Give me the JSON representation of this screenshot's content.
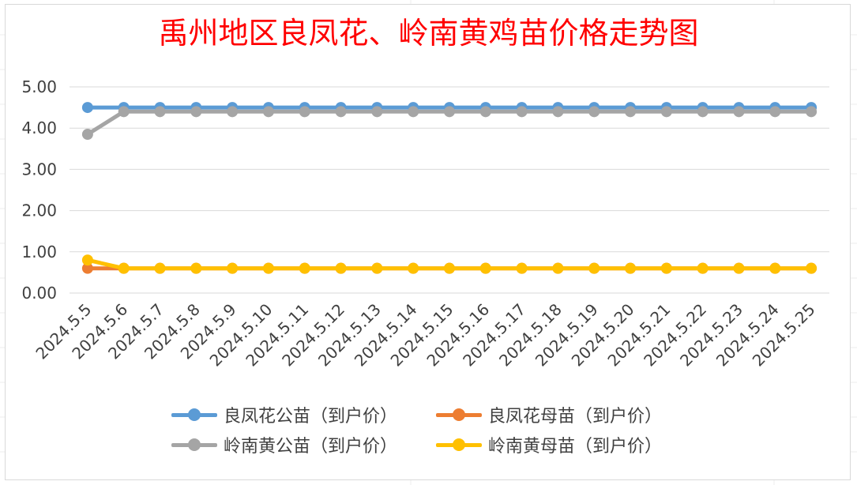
{
  "chart_data": {
    "type": "line",
    "title": "禹州地区良凤花、岭南黄鸡苗价格走势图",
    "xlabel": "",
    "ylabel": "",
    "ylim": [
      0,
      5
    ],
    "yticks": [
      "0.00",
      "1.00",
      "2.00",
      "3.00",
      "4.00",
      "5.00"
    ],
    "grid": true,
    "legend_position": "bottom",
    "categories": [
      "2024.5.5",
      "2024.5.6",
      "2024.5.7",
      "2024.5.8",
      "2024.5.9",
      "2024.5.10",
      "2024.5.11",
      "2024.5.12",
      "2024.5.13",
      "2024.5.14",
      "2024.5.15",
      "2024.5.16",
      "2024.5.17",
      "2024.5.18",
      "2024.5.19",
      "2024.5.20",
      "2024.5.21",
      "2024.5.22",
      "2024.5.23",
      "2024.5.24",
      "2024.5.25"
    ],
    "series": [
      {
        "name": "良凤花公苗（到户价）",
        "color": "#5b9bd5",
        "values": [
          4.5,
          4.5,
          4.5,
          4.5,
          4.5,
          4.5,
          4.5,
          4.5,
          4.5,
          4.5,
          4.5,
          4.5,
          4.5,
          4.5,
          4.5,
          4.5,
          4.5,
          4.5,
          4.5,
          4.5,
          4.5
        ]
      },
      {
        "name": "良凤花母苗（到户价）",
        "color": "#ed7d31",
        "values": [
          0.6,
          0.6,
          0.6,
          0.6,
          0.6,
          0.6,
          0.6,
          0.6,
          0.6,
          0.6,
          0.6,
          0.6,
          0.6,
          0.6,
          0.6,
          0.6,
          0.6,
          0.6,
          0.6,
          0.6,
          0.6
        ]
      },
      {
        "name": "岭南黄公苗（到户价）",
        "color": "#a5a5a5",
        "values": [
          3.85,
          4.4,
          4.4,
          4.4,
          4.4,
          4.4,
          4.4,
          4.4,
          4.4,
          4.4,
          4.4,
          4.4,
          4.4,
          4.4,
          4.4,
          4.4,
          4.4,
          4.4,
          4.4,
          4.4,
          4.4
        ]
      },
      {
        "name": "岭南黄母苗（到户价）",
        "color": "#ffc000",
        "values": [
          0.8,
          0.6,
          0.6,
          0.6,
          0.6,
          0.6,
          0.6,
          0.6,
          0.6,
          0.6,
          0.6,
          0.6,
          0.6,
          0.6,
          0.6,
          0.6,
          0.6,
          0.6,
          0.6,
          0.6,
          0.6
        ]
      }
    ]
  }
}
